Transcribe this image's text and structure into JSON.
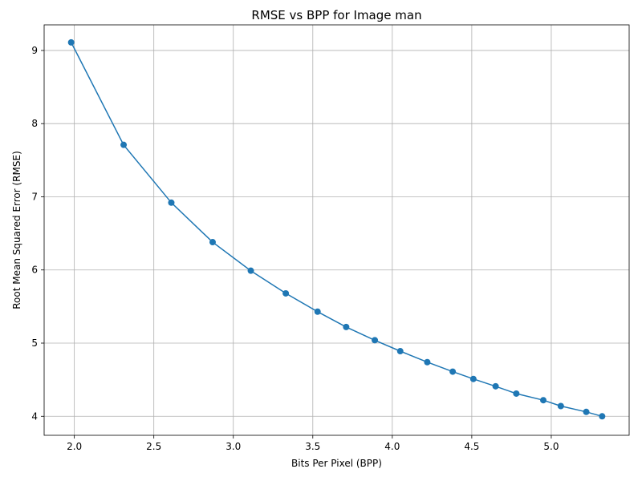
{
  "chart_data": {
    "type": "line",
    "title": "RMSE vs BPP for Image man",
    "xlabel": "Bits Per Pixel (BPP)",
    "ylabel": "Root Mean Squared Error (RMSE)",
    "xlim": [
      1.81,
      5.49
    ],
    "ylim": [
      3.74,
      9.35
    ],
    "xticks": [
      "2.0",
      "2.5",
      "3.0",
      "3.5",
      "4.0",
      "4.5",
      "5.0"
    ],
    "yticks": [
      "4",
      "5",
      "6",
      "7",
      "8",
      "9"
    ],
    "grid": true,
    "color": "#1f77b4",
    "x": [
      1.98,
      2.31,
      2.61,
      2.87,
      3.11,
      3.33,
      3.53,
      3.71,
      3.89,
      4.05,
      4.22,
      4.38,
      4.51,
      4.65,
      4.78,
      4.95,
      5.06,
      5.22,
      5.32
    ],
    "y": [
      9.11,
      7.71,
      6.92,
      6.38,
      5.99,
      5.68,
      5.43,
      5.22,
      5.04,
      4.89,
      4.74,
      4.61,
      4.51,
      4.41,
      4.31,
      4.22,
      4.14,
      4.06,
      4.0
    ]
  }
}
